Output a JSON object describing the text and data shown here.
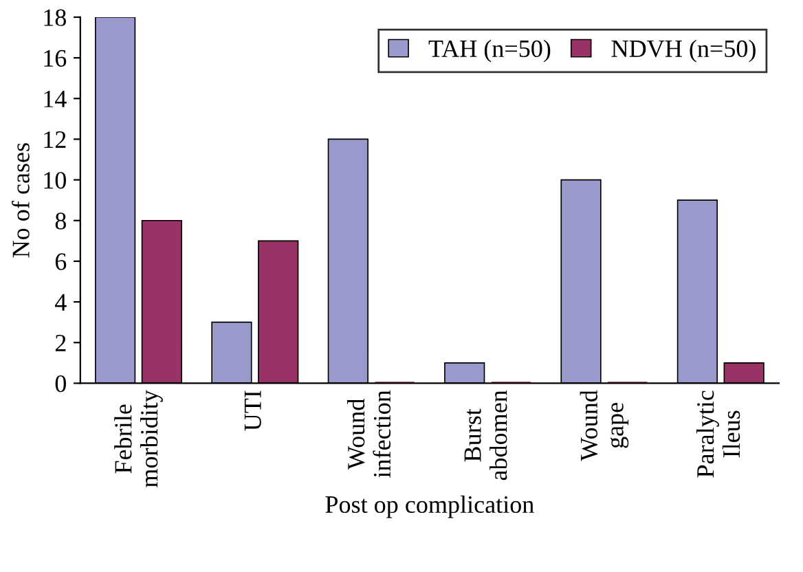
{
  "chart_data": {
    "type": "bar",
    "xlabel": "Post op complication",
    "ylabel": "No of cases",
    "categories": [
      "Febrile\nmorbidity",
      "UTI",
      "Wound\ninfection",
      "Burst\nabdomen",
      "Wound\ngape",
      "Paralytic\nIleus"
    ],
    "series": [
      {
        "name": "TAH (n=50)",
        "color": "#9999cc",
        "values": [
          18,
          3,
          12,
          1,
          10,
          9
        ]
      },
      {
        "name": "NDVH (n=50)",
        "color": "#993366",
        "values": [
          8,
          7,
          0,
          0,
          0,
          1
        ]
      }
    ],
    "ylim": [
      0,
      18
    ],
    "yticks": [
      0,
      2,
      4,
      6,
      8,
      10,
      12,
      14,
      16,
      18
    ],
    "grid": false,
    "legend": "top right"
  }
}
